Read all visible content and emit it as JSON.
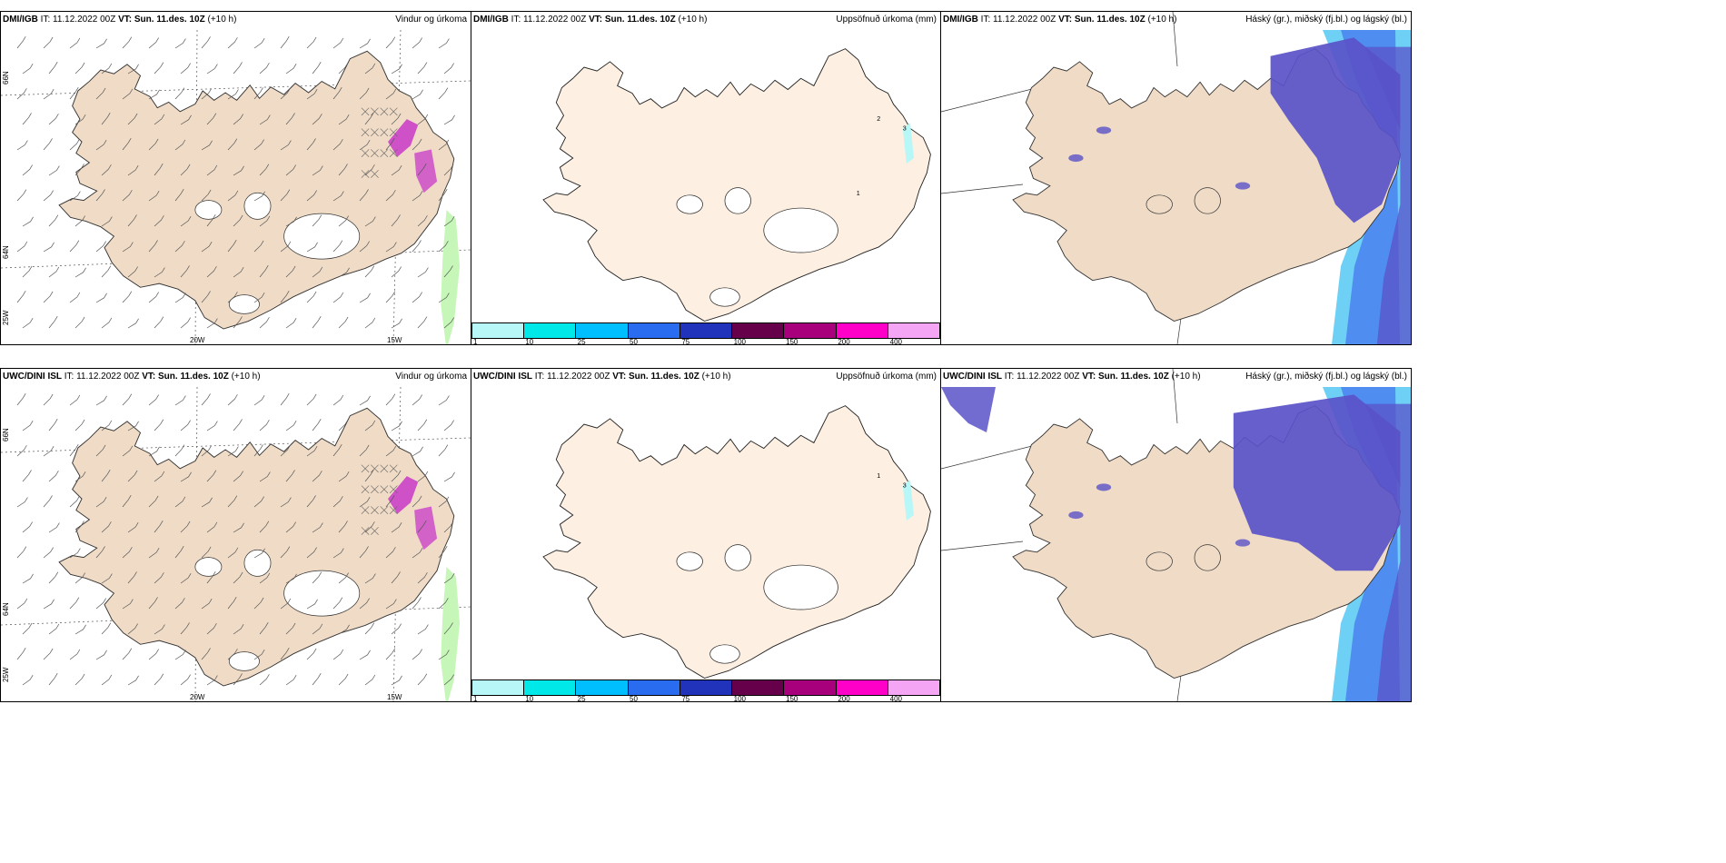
{
  "rows": [
    {
      "panels": [
        {
          "model": "DMI/IGB",
          "it": "IT: 11.12.2022 00Z",
          "vt_label": "VT:",
          "vt": "Sun. 11.des. 10Z",
          "lead": "(+10 h)",
          "title": "Vindur og úrkoma"
        },
        {
          "model": "DMI/IGB",
          "it": "IT: 11.12.2022 00Z",
          "vt_label": "VT:",
          "vt": "Sun. 11.des. 10Z",
          "lead": "(+10 h)",
          "title": "Uppsöfnuð úrkoma (mm)"
        },
        {
          "model": "DMI/IGB",
          "it": "IT: 11.12.2022 00Z",
          "vt_label": "VT:",
          "vt": "Sun. 11.des. 10Z",
          "lead": "(+10 h)",
          "title": "Háský (gr.), miðský (fj.bl.) og lágský (bl.)"
        }
      ],
      "precip_point_labels": [
        "2",
        "3",
        "1"
      ]
    },
    {
      "panels": [
        {
          "model": "UWC/DINI ISL",
          "it": "IT: 11.12.2022 00Z",
          "vt_label": "VT:",
          "vt": "Sun. 11.des. 10Z",
          "lead": "(+10 h)",
          "title": "Vindur og úrkoma"
        },
        {
          "model": "UWC/DINI ISL",
          "it": "IT: 11.12.2022 00Z",
          "vt_label": "VT:",
          "vt": "Sun. 11.des. 10Z",
          "lead": "(+10 h)",
          "title": "Uppsöfnuð úrkoma (mm)"
        },
        {
          "model": "UWC/DINI ISL",
          "it": "IT: 11.12.2022 00Z",
          "vt_label": "VT:",
          "vt": "Sun. 11.des. 10Z",
          "lead": "(+10 h)",
          "title": "Háský (gr.), miðský (fj.bl.) og lágský (bl.)"
        }
      ],
      "precip_point_labels": [
        "1",
        "3"
      ]
    }
  ],
  "grid_labels": {
    "lat_66": "66N",
    "lat_64": "64N",
    "lon_25": "25W",
    "lon_20": "20W",
    "lon_15": "15W"
  },
  "colorbar": {
    "ticks": [
      "1",
      "10",
      "25",
      "50",
      "75",
      "100",
      "150",
      "200",
      "400"
    ],
    "colors": [
      "#b8f7f7",
      "#00e8e8",
      "#00bfff",
      "#2a6cf0",
      "#2233bb",
      "#66004a",
      "#a8007d",
      "#ff00c8",
      "#f4a6f4"
    ]
  },
  "colors": {
    "land": "#f0dcc6",
    "land_light": "#fdefe1",
    "cloud_dark": "#5a52c8",
    "cloud_mid": "#4f8ef0",
    "cloud_light": "#6ed0f5",
    "precip_green": "#c6f7b8",
    "precip_magenta": "#c838c8"
  }
}
